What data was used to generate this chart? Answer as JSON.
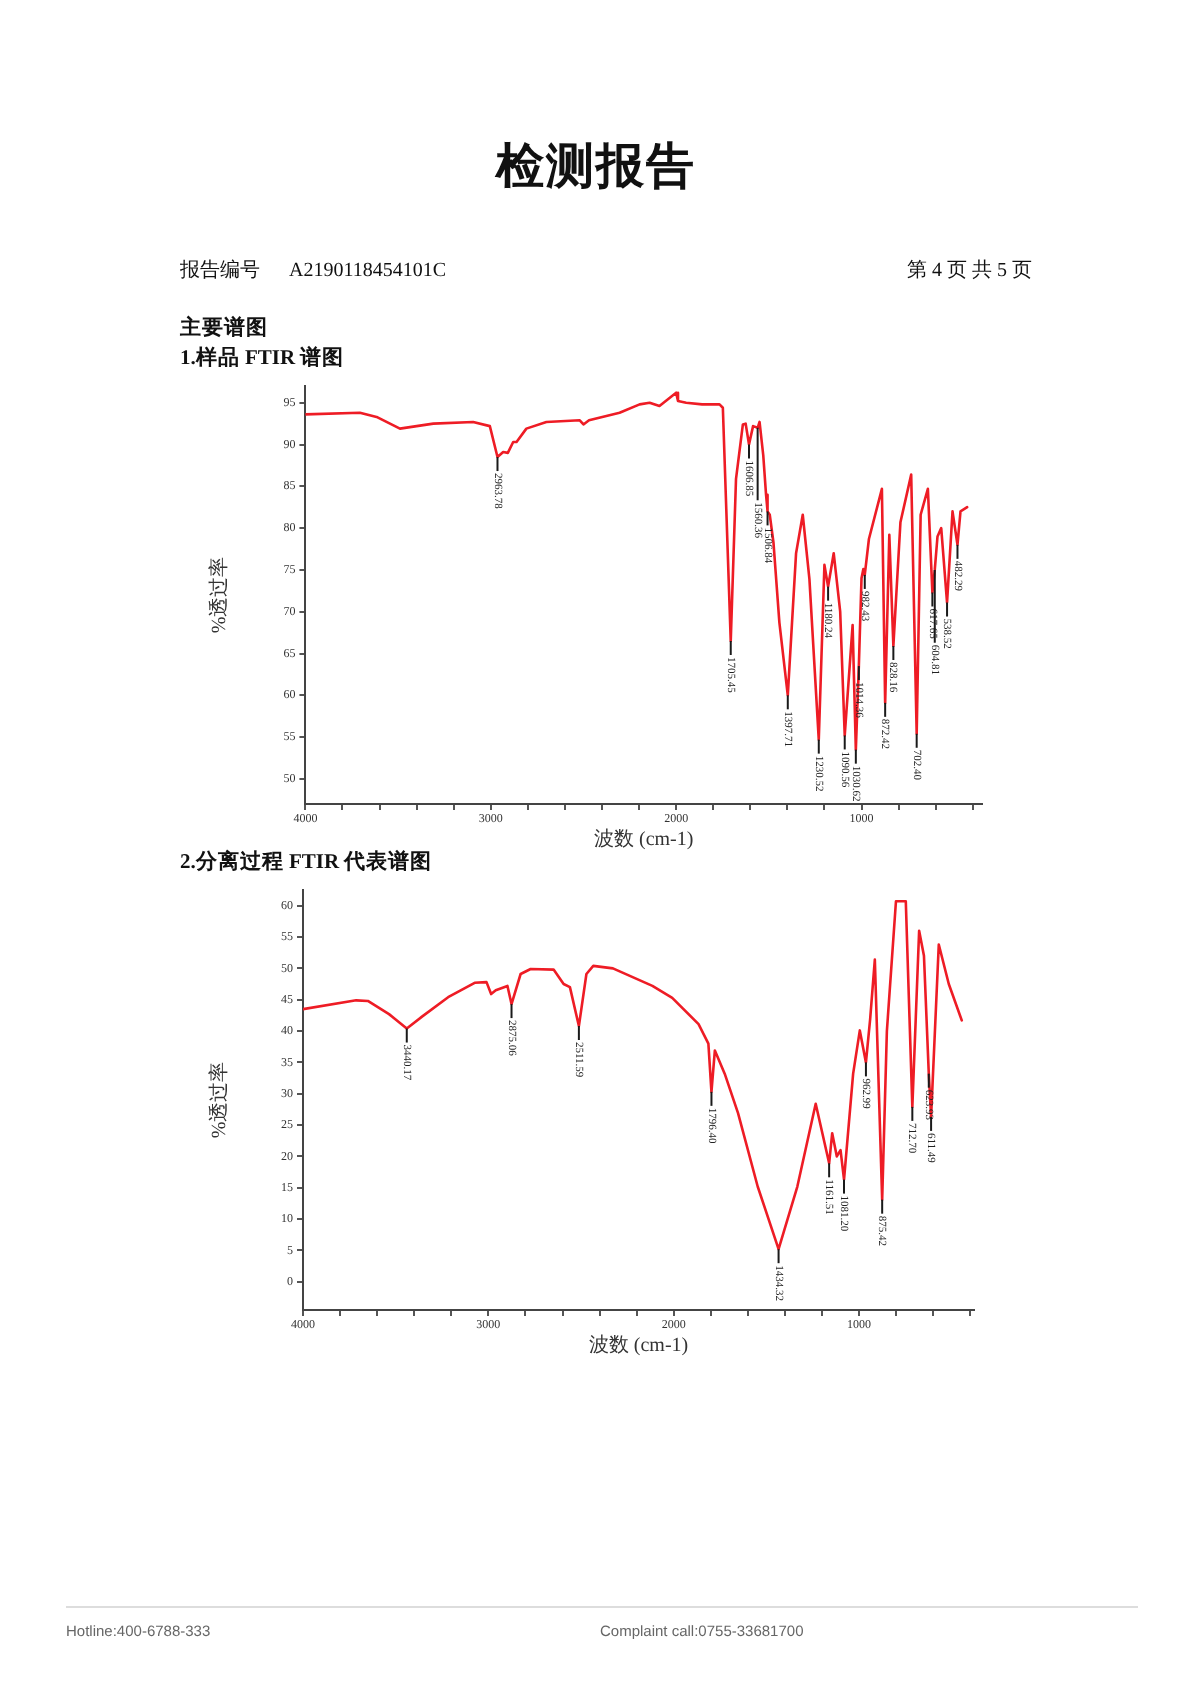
{
  "chart_data": [
    {
      "type": "line",
      "title": "1.样品 FTIR 谱图",
      "xlabel": "波数 (cm-1)",
      "ylabel": "%透过率",
      "x": [
        4000,
        3706,
        3616,
        3490,
        3310,
        3095,
        3005,
        2963.78,
        2933,
        2908,
        2879,
        2861,
        2808,
        2700,
        2520,
        2500,
        2470,
        2305,
        2197,
        2143,
        2090,
        2000,
        1990,
        1946,
        1860,
        1766,
        1748,
        1705.45,
        1677,
        1640,
        1625,
        1606.85,
        1585,
        1560.36,
        1550,
        1530,
        1515,
        1506.84,
        1495,
        1475,
        1443,
        1397.71,
        1353,
        1317,
        1281,
        1230.52,
        1200,
        1180.24,
        1150,
        1115,
        1090.56,
        1048,
        1030.62,
        1014.36,
        1000,
        990,
        982.43,
        960,
        890,
        872.42,
        850,
        828.16,
        790,
        732,
        702.4,
        681,
        642,
        617.65,
        604.81,
        590,
        570,
        538.52,
        509,
        482.29,
        466,
        430
      ],
      "series": [
        {
          "color": "#ee1c25",
          "values": [
            93.6,
            93.8,
            93.3,
            91.9,
            92.5,
            92.7,
            92.2,
            88.5,
            89.1,
            89.0,
            90.3,
            90.3,
            91.9,
            92.7,
            92.9,
            92.4,
            92.9,
            93.8,
            94.8,
            95.0,
            94.6,
            96.2,
            95.2,
            95.0,
            94.8,
            94.8,
            94.4,
            66.5,
            85.9,
            92.4,
            92.5,
            90.0,
            92.2,
            92.0,
            92.7,
            88.7,
            84.0,
            82.0,
            81.6,
            78.3,
            68.7,
            60.0,
            77.0,
            81.6,
            73.9,
            54.7,
            75.6,
            73.0,
            77.0,
            70.0,
            55.2,
            68.4,
            53.5,
            63.5,
            74.0,
            75.1,
            74.4,
            78.7,
            84.7,
            59.1,
            79.2,
            65.9,
            80.7,
            86.4,
            55.4,
            81.6,
            84.7,
            72.3,
            75.0,
            79.0,
            80.0,
            71.1,
            82.0,
            78.0,
            82.0,
            82.5
          ]
        }
      ],
      "xlim": [
        4000,
        350
      ],
      "xticks": [
        4000,
        {
          "value": 3800,
          "label": null
        },
        {
          "value": 3600,
          "label": null
        },
        {
          "value": 3400,
          "label": null
        },
        {
          "value": 3200,
          "label": null
        },
        3000,
        {
          "value": 2800,
          "label": null
        },
        {
          "value": 2600,
          "label": null
        },
        {
          "value": 2400,
          "label": null
        },
        {
          "value": 2200,
          "label": null
        },
        2000,
        {
          "value": 1800,
          "label": null
        },
        {
          "value": 1600,
          "label": null
        },
        {
          "value": 1400,
          "label": null
        },
        {
          "value": 1200,
          "label": null
        },
        1000,
        {
          "value": 800,
          "label": null
        },
        {
          "value": 600,
          "label": null
        },
        {
          "value": 400,
          "label": null
        }
      ],
      "ylim": [
        47,
        97
      ],
      "yticks": [
        50,
        55,
        60,
        65,
        70,
        75,
        80,
        85,
        90,
        95
      ],
      "annotations": [
        "检测报告",
        "报告编号 A2190118454101C",
        "第 4 页 共 5 页",
        "主要谱图",
        {
          "text": "2963.78",
          "x": 2963.78,
          "y": 88.5
        },
        {
          "text": "1705.45",
          "x": 1705.45,
          "y": 66.5
        },
        {
          "text": "1606.85",
          "x": 1606.85,
          "y": 90.0
        },
        {
          "text": "1560.36",
          "x": 1560.36,
          "y": 92.0
        },
        {
          "text": "1506.84",
          "x": 1506.84,
          "y": 82.0
        },
        {
          "text": "1397.71",
          "x": 1397.71,
          "y": 60.0
        },
        {
          "text": "1230.52",
          "x": 1230.52,
          "y": 54.7
        },
        {
          "text": "1180.24",
          "x": 1180.24,
          "y": 73.0
        },
        {
          "text": "1090.56",
          "x": 1090.56,
          "y": 55.2
        },
        {
          "text": "1030.62",
          "x": 1030.62,
          "y": 53.5
        },
        {
          "text": "1014.36",
          "x": 1014.36,
          "y": 63.5
        },
        {
          "text": "982.43",
          "x": 982.43,
          "y": 74.4
        },
        {
          "text": "872.42",
          "x": 872.42,
          "y": 59.1
        },
        {
          "text": "828.16",
          "x": 828.16,
          "y": 65.9
        },
        {
          "text": "702.40",
          "x": 702.4,
          "y": 55.4
        },
        {
          "text": "617.65",
          "x": 617.65,
          "y": 72.3
        },
        {
          "text": "604.81",
          "x": 604.81,
          "y": 75.0
        },
        {
          "text": "538.52",
          "x": 538.52,
          "y": 71.1
        },
        {
          "text": "482.29",
          "x": 482.29,
          "y": 78.0
        }
      ]
    },
    {
      "type": "line",
      "title": "2.分离过程 FTIR 代表谱图",
      "xlabel": "波数 (cm-1)",
      "ylabel": "%透过率",
      "x": [
        4000,
        3713,
        3650,
        3536,
        3440.17,
        3358,
        3217,
        3074,
        3010,
        2985,
        2960,
        2897,
        2875.06,
        2826,
        2772,
        2648,
        2594,
        2560,
        2511.59,
        2471,
        2434,
        2328,
        2115,
        2008,
        1866,
        1813,
        1796.4,
        1778,
        1725,
        1653,
        1547,
        1434.32,
        1333,
        1234,
        1161.51,
        1145,
        1120,
        1100,
        1081.2,
        1032,
        996,
        962.99,
        940,
        915,
        875.42,
        850,
        801,
        748,
        712.7,
        676,
        650,
        623.93,
        611.49,
        570,
        516,
        446
      ],
      "series": [
        {
          "color": "#ee1c25",
          "values": [
            43.5,
            44.9,
            44.8,
            42.7,
            40.4,
            42.3,
            45.4,
            47.7,
            47.8,
            45.9,
            46.5,
            47.2,
            44.3,
            49.1,
            49.9,
            49.8,
            47.5,
            47.0,
            40.8,
            49.1,
            50.4,
            50.0,
            47.2,
            45.3,
            41.1,
            38.0,
            30.3,
            36.9,
            33.2,
            26.9,
            15.2,
            5.2,
            15.2,
            28.4,
            18.9,
            23.7,
            20.0,
            21.0,
            16.3,
            33.2,
            40.1,
            35.0,
            42.0,
            51.4,
            13.1,
            40.0,
            60.7,
            60.7,
            27.9,
            56.0,
            52.0,
            33.2,
            26.3,
            53.8,
            47.5,
            41.7
          ]
        }
      ],
      "xlim": [
        4000,
        380
      ],
      "xticks": [
        4000,
        {
          "value": 3800,
          "label": null
        },
        {
          "value": 3600,
          "label": null
        },
        {
          "value": 3400,
          "label": null
        },
        {
          "value": 3200,
          "label": null
        },
        3000,
        {
          "value": 2800,
          "label": null
        },
        {
          "value": 2600,
          "label": null
        },
        {
          "value": 2400,
          "label": null
        },
        {
          "value": 2200,
          "label": null
        },
        2000,
        {
          "value": 1800,
          "label": null
        },
        {
          "value": 1600,
          "label": null
        },
        {
          "value": 1400,
          "label": null
        },
        {
          "value": 1200,
          "label": null
        },
        1000,
        {
          "value": 800,
          "label": null
        },
        {
          "value": 600,
          "label": null
        },
        {
          "value": 400,
          "label": null
        }
      ],
      "ylim": [
        -4.5,
        62.5
      ],
      "yticks": [
        0,
        5,
        10,
        15,
        20,
        25,
        30,
        35,
        40,
        45,
        50,
        55,
        60
      ],
      "annotations": [
        {
          "text": "3440.17",
          "x": 3440.17,
          "y": 40.4
        },
        {
          "text": "2875.06",
          "x": 2875.06,
          "y": 44.3
        },
        {
          "text": "2511.59",
          "x": 2511.59,
          "y": 40.8
        },
        {
          "text": "1796.40",
          "x": 1796.4,
          "y": 30.3
        },
        {
          "text": "1434.32",
          "x": 1434.32,
          "y": 5.2
        },
        {
          "text": "1161.51",
          "x": 1161.51,
          "y": 18.9
        },
        {
          "text": "1081.20",
          "x": 1081.2,
          "y": 16.3
        },
        {
          "text": "962.99",
          "x": 962.99,
          "y": 35.0
        },
        {
          "text": "875.42",
          "x": 875.42,
          "y": 13.1
        },
        {
          "text": "712.70",
          "x": 712.7,
          "y": 27.9
        },
        {
          "text": "623.93",
          "x": 623.93,
          "y": 33.2
        },
        {
          "text": "611.49",
          "x": 611.49,
          "y": 26.3
        },
        "Hotline:400-6788-333",
        "Complaint call:0755-33681700"
      ]
    }
  ]
}
